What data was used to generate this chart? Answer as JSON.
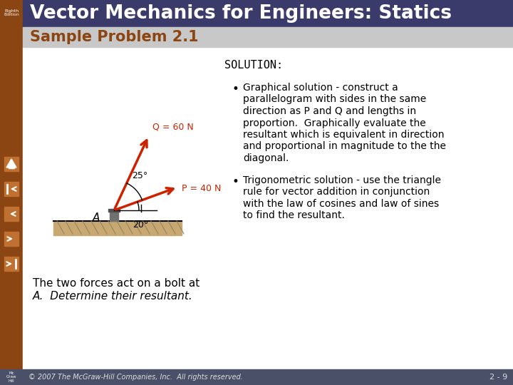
{
  "title": "Vector Mechanics for Engineers: Statics",
  "subtitle": "Sample Problem 2.1",
  "title_bg": "#3B3B6B",
  "subtitle_bg": "#C8C8C8",
  "content_bg": "#FFFFFF",
  "main_bg": "#FFFFFF",
  "left_sidebar_color": "#8B4513",
  "solution_title": "SOLUTION:",
  "bullet1_lines": [
    "Graphical solution - construct a",
    "parallelogram with sides in the same",
    "direction as P and Q and lengths in",
    "proportion.  Graphically evaluate the",
    "resultant which is equivalent in direction",
    "and proportional in magnitude to the the",
    "diagonal."
  ],
  "bullet2_lines": [
    "Trigonometric solution - use the triangle",
    "rule for vector addition in conjunction",
    "with the law of cosines and law of sines",
    "to find the resultant."
  ],
  "caption_line1": "The two forces act on a bolt at",
  "caption_line2": "A.  Determine their resultant.",
  "footer_left": "© 2007 The McGraw-Hill Companies, Inc.  All rights reserved.",
  "footer_right": "2 - 9",
  "footer_bg": "#4A5068",
  "title_text_color": "#FFFFFF",
  "subtitle_text_color": "#8B4513",
  "body_text_color": "#000000",
  "force_color": "#CC2200",
  "ground_color": "#C8A870",
  "edition_text": "Eighth\nEdition"
}
